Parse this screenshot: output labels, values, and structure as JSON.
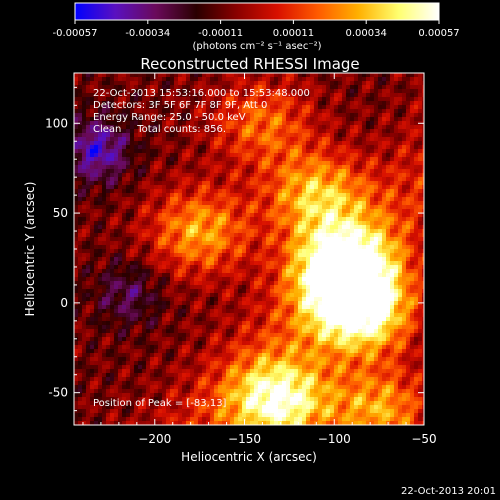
{
  "chart_data": {
    "type": "heatmap",
    "title": "Reconstructed RHESSI Image",
    "xlabel": "Heliocentric X (arcsec)",
    "ylabel": "Heliocentric Y (arcsec)",
    "xlim": [
      -245,
      -50
    ],
    "ylim": [
      -68,
      128
    ],
    "xticks": [
      -200,
      -150,
      -100,
      -50
    ],
    "yticks": [
      -50,
      0,
      50,
      100
    ],
    "colorbar": {
      "range": [
        -0.00057,
        0.00057
      ],
      "ticks": [
        "-0.00057",
        "-0.00034",
        "-0.00011",
        "0.00011",
        "0.00034",
        "0.00057"
      ],
      "unit_label": "(photons cm⁻² s⁻¹ asec⁻²)",
      "colormap": [
        "#0000ff",
        "#5a10c0",
        "#6a0a5a",
        "#2a0000",
        "#8a0000",
        "#d81000",
        "#ff5a00",
        "#ffb000",
        "#ffff70",
        "#ffffff"
      ]
    },
    "annotations": [
      "22-Oct-2013 15:53:16.000 to 15:53:48.000",
      "Detectors: 3F 5F 6F 7F 8F 9F, Att 0",
      "Energy Range: 25.0 - 50.0 keV",
      "Clean     Total counts: 856."
    ],
    "peak_label": "Position of Peak = [-83,13]",
    "peak": [
      -83,
      13
    ],
    "bright_regions": [
      {
        "x": -95,
        "y": 20,
        "value": 0.00057
      },
      {
        "x": -85,
        "y": -5,
        "value": 0.00052
      },
      {
        "x": -110,
        "y": 60,
        "value": 0.00034
      },
      {
        "x": -130,
        "y": -55,
        "value": 0.00048
      },
      {
        "x": -175,
        "y": 40,
        "value": 0.0003
      },
      {
        "x": -140,
        "y": 100,
        "value": 0.0002
      },
      {
        "x": -75,
        "y": -60,
        "value": 0.0003
      }
    ],
    "dark_regions": [
      {
        "x": -232,
        "y": 85,
        "value": -0.00045
      },
      {
        "x": -215,
        "y": 5,
        "value": -0.0003
      }
    ]
  },
  "footer_timestamp": "22-Oct-2013 20:01"
}
